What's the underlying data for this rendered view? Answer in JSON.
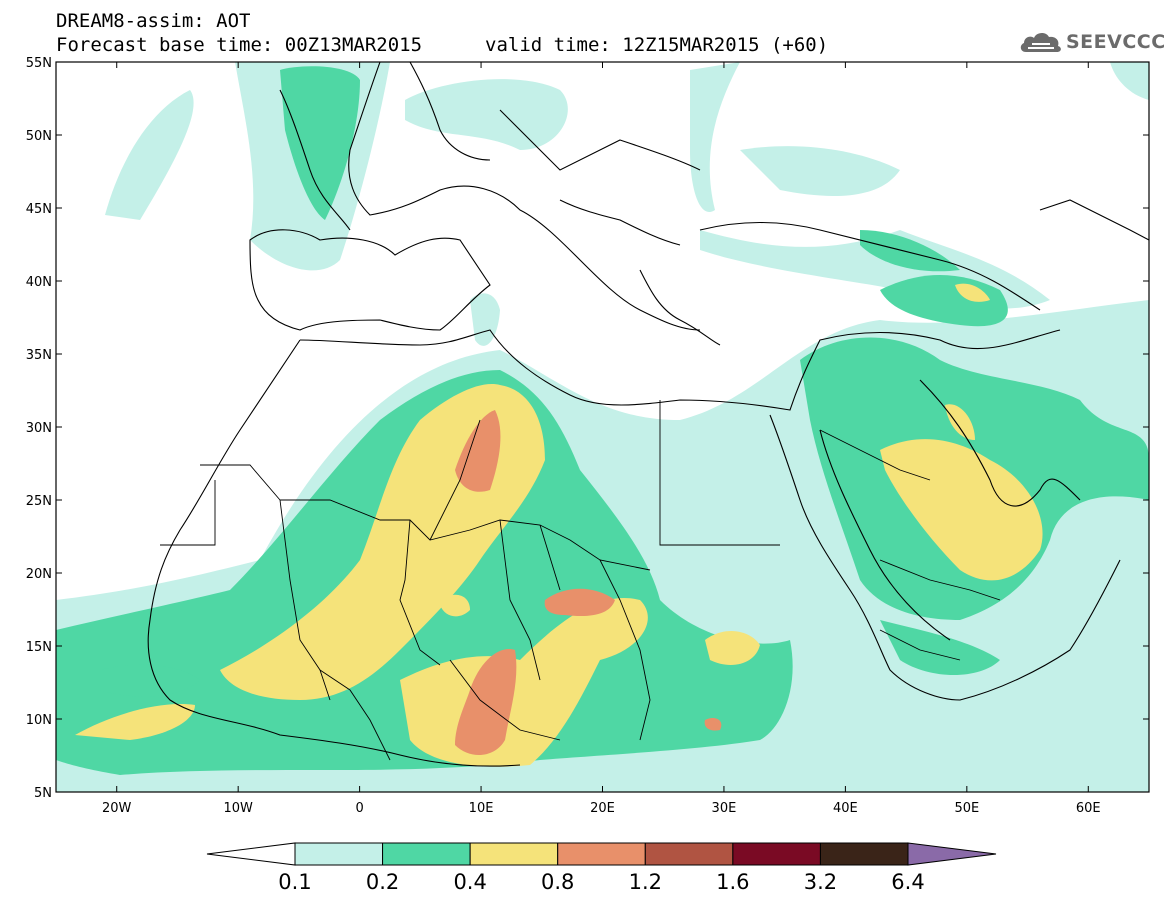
{
  "header": {
    "title": "DREAM8-assim: AOT",
    "base_time": "Forecast base time: 00Z13MAR2015",
    "valid_time": "valid time: 12Z15MAR2015 (+60)"
  },
  "logo": {
    "icon": "cloud-icon",
    "text": "SEEVCCC"
  },
  "map": {
    "variable": "AOT",
    "lon_range": [
      -25,
      65
    ],
    "lat_range": [
      5,
      55
    ],
    "lat_labels": [
      "55N",
      "50N",
      "45N",
      "40N",
      "35N",
      "30N",
      "25N",
      "20N",
      "15N",
      "10N",
      "5N"
    ],
    "lon_labels": [
      "20W",
      "10W",
      "0",
      "10E",
      "20E",
      "30E",
      "40E",
      "50E",
      "60E"
    ]
  },
  "colorbar": {
    "levels": [
      "0.1",
      "0.2",
      "0.4",
      "0.8",
      "1.2",
      "1.6",
      "3.2",
      "6.4"
    ],
    "colors": [
      "#ffffff",
      "#c4f0e8",
      "#4fd7a4",
      "#f5e37a",
      "#e8906a",
      "#b05442",
      "#7a0a24",
      "#3a2418",
      "#8a6aa8"
    ]
  }
}
